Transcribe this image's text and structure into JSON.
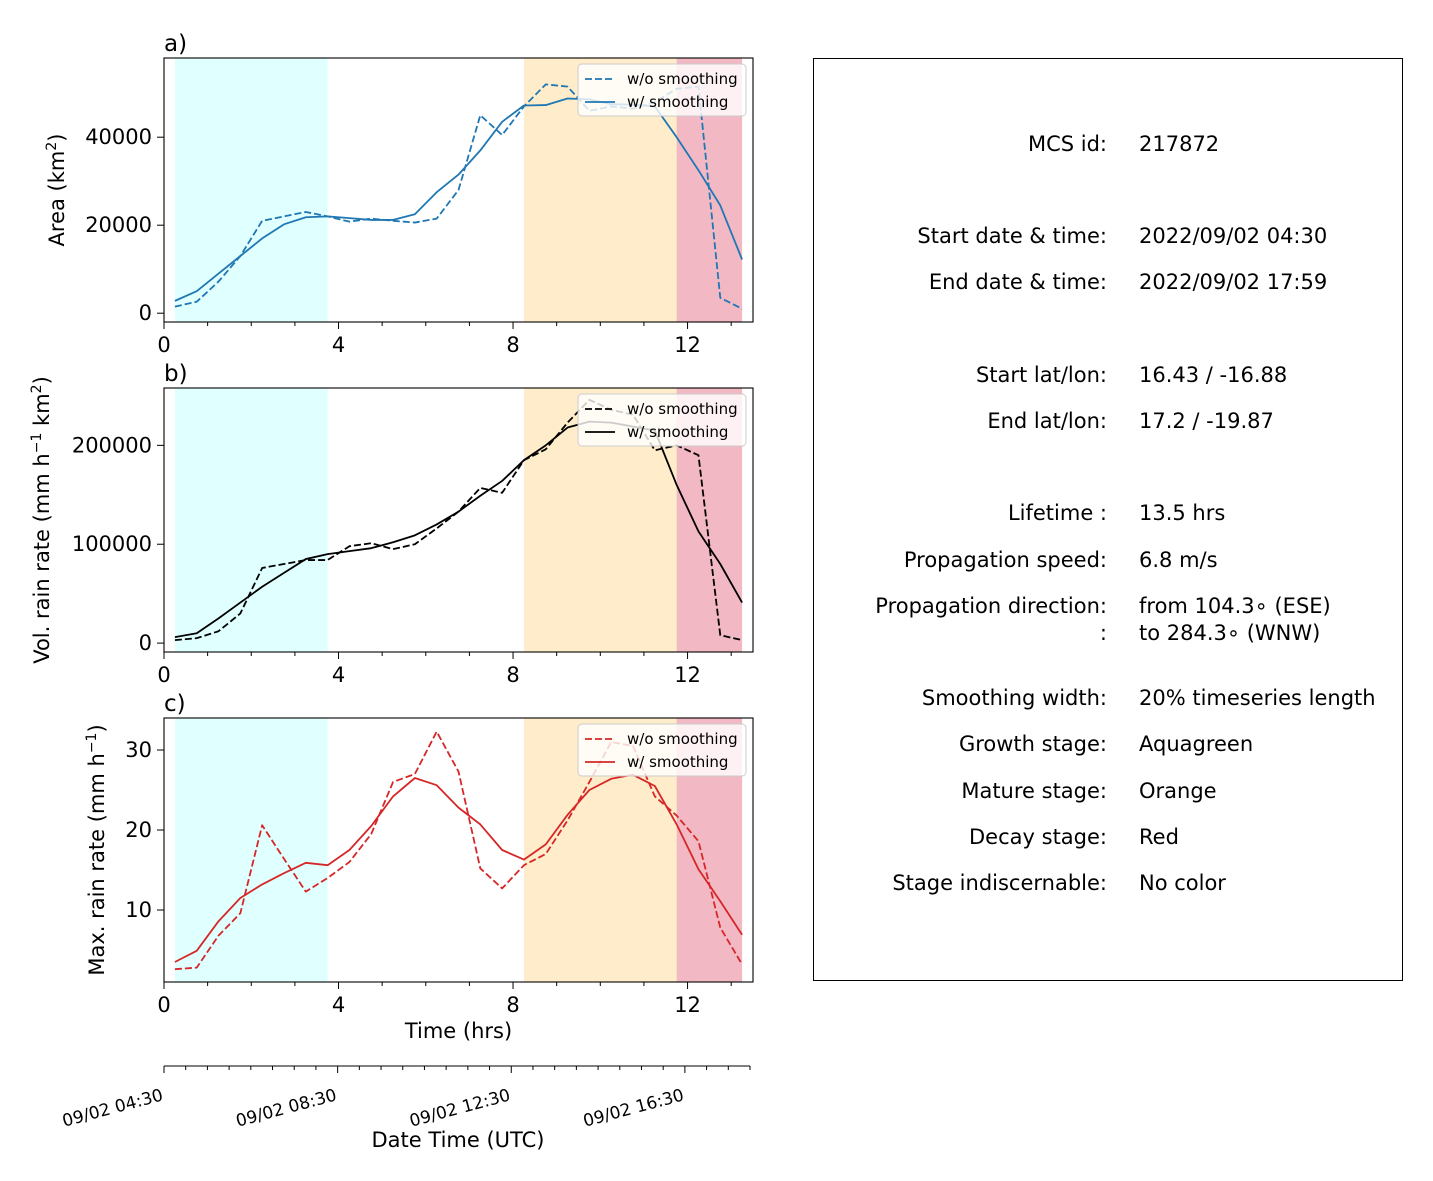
{
  "chart_data": [
    {
      "type": "line",
      "panel_label": "a)",
      "ylabel_text": "Area  (km",
      "ylabel_sup": "2",
      "ylabel_tail": ")",
      "xlim": [
        0,
        13.5
      ],
      "ylim": [
        -2000,
        58000
      ],
      "x_ticks": [
        0,
        4,
        8,
        12
      ],
      "y_ticks": [
        0,
        20000,
        40000
      ],
      "color": "#1f77b4",
      "legend": [
        "w/o smoothing",
        "w/ smoothing"
      ],
      "stages": [
        {
          "name": "Growth",
          "start": 0.25,
          "end": 3.75,
          "color": "#e0ffff"
        },
        {
          "name": "Mature",
          "start": 8.25,
          "end": 11.75,
          "color": "#ffecca"
        },
        {
          "name": "Decay",
          "start": 11.75,
          "end": 13.25,
          "color": "#f2b9c4"
        }
      ],
      "series": [
        {
          "style": "dashed",
          "x": [
            0.25,
            0.75,
            1.25,
            1.75,
            2.25,
            2.75,
            3.25,
            3.75,
            4.25,
            4.75,
            5.25,
            5.75,
            6.25,
            6.75,
            7.25,
            7.75,
            8.25,
            8.75,
            9.25,
            9.75,
            10.25,
            10.75,
            11.25,
            11.75,
            12.25,
            12.75,
            13.25
          ],
          "y": [
            1500,
            2600,
            7200,
            13000,
            21000,
            22000,
            23000,
            22000,
            20800,
            21500,
            21000,
            20600,
            21500,
            28000,
            45000,
            40500,
            47000,
            52000,
            51500,
            46000,
            47000,
            46500,
            48000,
            51000,
            51500,
            3500,
            1000
          ]
        },
        {
          "style": "solid",
          "x": [
            0.25,
            0.75,
            1.25,
            1.75,
            2.25,
            2.75,
            3.25,
            3.75,
            4.25,
            4.75,
            5.25,
            5.75,
            6.25,
            6.75,
            7.25,
            7.75,
            8.25,
            8.75,
            9.25,
            9.75,
            10.25,
            10.75,
            11.25,
            11.75,
            12.25,
            12.75,
            13.25
          ],
          "y": [
            2800,
            5000,
            9000,
            13000,
            17000,
            20200,
            21800,
            22000,
            21600,
            21200,
            21200,
            22500,
            27500,
            31500,
            37000,
            43500,
            47200,
            47300,
            48800,
            48600,
            47500,
            47400,
            47000,
            40000,
            32500,
            24500,
            12200
          ]
        }
      ]
    },
    {
      "type": "line",
      "panel_label": "b)",
      "ylabel_text": "Vol. rain rate (mm h",
      "ylabel_sup": "−1",
      "ylabel_mid": " km",
      "ylabel_sup2": "2",
      "ylabel_tail": ")",
      "xlim": [
        0,
        13.5
      ],
      "ylim": [
        -9000,
        258000
      ],
      "x_ticks": [
        0,
        4,
        8,
        12
      ],
      "y_ticks": [
        0,
        100000,
        200000
      ],
      "color": "#000000",
      "legend": [
        "w/o smoothing",
        "w/ smoothing"
      ],
      "stages": [
        {
          "name": "Growth",
          "start": 0.25,
          "end": 3.75,
          "color": "#e0ffff"
        },
        {
          "name": "Mature",
          "start": 8.25,
          "end": 11.75,
          "color": "#ffecca"
        },
        {
          "name": "Decay",
          "start": 11.75,
          "end": 13.25,
          "color": "#f2b9c4"
        }
      ],
      "series": [
        {
          "style": "dashed",
          "x": [
            0.25,
            0.75,
            1.25,
            1.75,
            2.25,
            2.75,
            3.25,
            3.75,
            4.25,
            4.75,
            5.25,
            5.75,
            6.25,
            6.75,
            7.25,
            7.75,
            8.25,
            8.75,
            9.25,
            9.75,
            10.25,
            10.75,
            11.25,
            11.75,
            12.25,
            12.75,
            13.25
          ],
          "y": [
            3000,
            5000,
            12000,
            30000,
            76000,
            80000,
            84000,
            84000,
            98000,
            101000,
            95000,
            100000,
            116000,
            133000,
            157000,
            152000,
            185000,
            196000,
            223000,
            246000,
            236000,
            231000,
            195000,
            200000,
            190000,
            8000,
            3000
          ]
        },
        {
          "style": "solid",
          "x": [
            0.25,
            0.75,
            1.25,
            1.75,
            2.25,
            2.75,
            3.25,
            3.75,
            4.25,
            4.75,
            5.25,
            5.75,
            6.25,
            6.75,
            7.25,
            7.75,
            8.25,
            8.75,
            9.25,
            9.75,
            10.25,
            10.75,
            11.25,
            11.75,
            12.25,
            12.75,
            13.25
          ],
          "y": [
            6000,
            10000,
            25000,
            41000,
            57000,
            71000,
            85000,
            90000,
            93000,
            96000,
            102000,
            109000,
            120000,
            133000,
            149000,
            164000,
            185000,
            200000,
            218000,
            224000,
            223000,
            219000,
            215000,
            160000,
            113000,
            80000,
            41000
          ]
        }
      ]
    },
    {
      "type": "line",
      "panel_label": "c)",
      "ylabel_text": "Max. rain rate  (mm h",
      "ylabel_sup": "−1",
      "ylabel_tail": ")",
      "xlabel": "Time (hrs)",
      "xlim": [
        0,
        13.5
      ],
      "ylim": [
        1.0,
        34.0
      ],
      "x_ticks": [
        0,
        4,
        8,
        12
      ],
      "y_ticks": [
        10,
        20,
        30
      ],
      "color": "#d62728",
      "legend": [
        "w/o smoothing",
        "w/ smoothing"
      ],
      "stages": [
        {
          "name": "Growth",
          "start": 0.25,
          "end": 3.75,
          "color": "#e0ffff"
        },
        {
          "name": "Mature",
          "start": 8.25,
          "end": 11.75,
          "color": "#ffecca"
        },
        {
          "name": "Decay",
          "start": 11.75,
          "end": 13.25,
          "color": "#f2b9c4"
        }
      ],
      "series": [
        {
          "style": "dashed",
          "x": [
            0.25,
            0.75,
            1.25,
            1.75,
            2.25,
            2.75,
            3.25,
            3.75,
            4.25,
            4.75,
            5.25,
            5.75,
            6.25,
            6.75,
            7.25,
            7.75,
            8.25,
            8.75,
            9.25,
            9.75,
            10.25,
            10.75,
            11.25,
            11.75,
            12.25,
            12.75,
            13.25
          ],
          "y": [
            2.6,
            2.8,
            6.8,
            9.6,
            20.6,
            16.4,
            12.3,
            14.0,
            16.0,
            19.5,
            26.0,
            27.0,
            32.3,
            27.3,
            15.2,
            12.7,
            15.6,
            17.0,
            21.2,
            26.0,
            31.0,
            30.5,
            24.2,
            21.8,
            18.6,
            7.8,
            3.2
          ]
        },
        {
          "style": "solid",
          "x": [
            0.25,
            0.75,
            1.25,
            1.75,
            2.25,
            2.75,
            3.25,
            3.75,
            4.25,
            4.75,
            5.25,
            5.75,
            6.25,
            6.75,
            7.25,
            7.75,
            8.25,
            8.75,
            9.25,
            9.75,
            10.25,
            10.75,
            11.25,
            11.75,
            12.25,
            12.75,
            13.25
          ],
          "y": [
            3.5,
            4.9,
            8.6,
            11.5,
            13.2,
            14.6,
            15.9,
            15.6,
            17.5,
            20.5,
            24.2,
            26.5,
            25.6,
            22.8,
            20.7,
            17.5,
            16.3,
            18.2,
            21.9,
            25.0,
            26.4,
            26.9,
            25.5,
            20.7,
            15.1,
            11.1,
            6.9
          ]
        }
      ]
    },
    {
      "type": "date_axis",
      "xlabel": "Date Time (UTC)",
      "xlim_hours": [
        0,
        13.5
      ],
      "tick_labels": [
        {
          "hour": 0,
          "label": "09/02 04:30"
        },
        {
          "hour": 4,
          "label": "09/02 08:30"
        },
        {
          "hour": 8,
          "label": "09/02 12:30"
        },
        {
          "hour": 12,
          "label": "09/02 16:30"
        }
      ]
    }
  ],
  "info": {
    "mcs_id": {
      "label": "MCS id:",
      "value": "217872"
    },
    "start_time": {
      "label": "Start date & time:",
      "value": "2022/09/02 04:30"
    },
    "end_time": {
      "label": "End date & time:",
      "value": "2022/09/02 17:59"
    },
    "start_latlon": {
      "label": "Start lat/lon:",
      "value": "16.43 / -16.88"
    },
    "end_latlon": {
      "label": "End lat/lon:",
      "value": "17.2 / -19.87"
    },
    "lifetime": {
      "label": "Lifetime :",
      "value": "13.5 hrs"
    },
    "prop_speed": {
      "label": "Propagation speed:",
      "value": "6.8 m/s"
    },
    "prop_dir": {
      "label": "Propagation direction:",
      "value": "from 104.3∘ (ESE)"
    },
    "prop_dir2": {
      "label": ":",
      "value": "to   284.3∘ (WNW)"
    },
    "smoothing": {
      "label": "Smoothing width:",
      "value": "20% timeseries length"
    },
    "growth": {
      "label": "Growth stage:",
      "value": "Aquagreen"
    },
    "mature": {
      "label": "Mature stage:",
      "value": "Orange"
    },
    "decay": {
      "label": "Decay stage:",
      "value": "Red"
    },
    "indiscernable": {
      "label": "Stage indiscernable:",
      "value": "No color"
    }
  }
}
